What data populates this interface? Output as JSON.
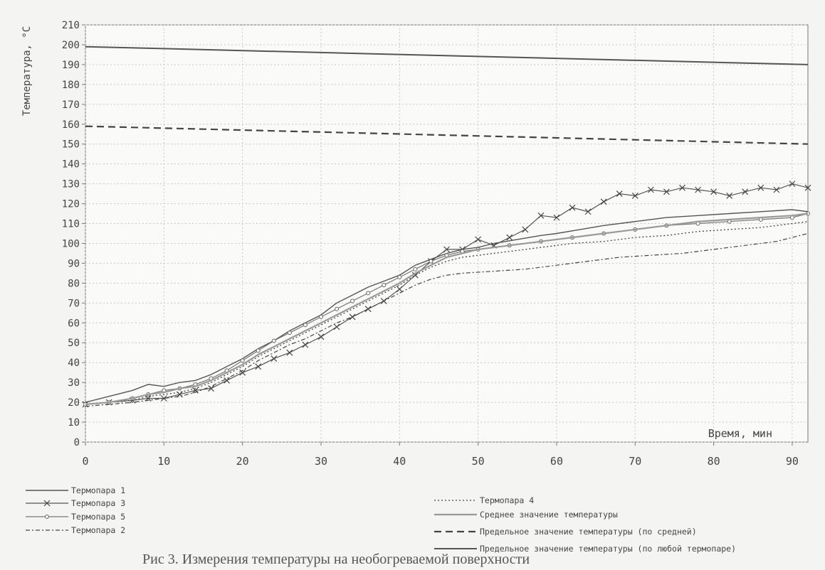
{
  "chart_data": {
    "type": "line",
    "ylabel": "Температура, °С",
    "xlabel": "Время, мин",
    "xlim": [
      0,
      92
    ],
    "ylim": [
      0,
      210
    ],
    "x_ticks": [
      0,
      10,
      20,
      30,
      40,
      50,
      60,
      70,
      80,
      90
    ],
    "y_ticks": [
      0,
      10,
      20,
      30,
      40,
      50,
      60,
      70,
      80,
      90,
      100,
      110,
      120,
      130,
      140,
      150,
      160,
      170,
      180,
      190,
      200,
      210
    ],
    "grid": true,
    "legend_position": "bottom",
    "series": [
      {
        "name": "Термопара 1",
        "style": "solid",
        "points": [
          [
            0,
            20
          ],
          [
            3,
            23
          ],
          [
            6,
            26
          ],
          [
            8,
            29
          ],
          [
            10,
            28
          ],
          [
            12,
            30
          ],
          [
            14,
            31
          ],
          [
            16,
            34
          ],
          [
            18,
            38
          ],
          [
            20,
            42
          ],
          [
            22,
            47
          ],
          [
            24,
            51
          ],
          [
            26,
            56
          ],
          [
            28,
            60
          ],
          [
            30,
            64
          ],
          [
            32,
            70
          ],
          [
            34,
            74
          ],
          [
            36,
            78
          ],
          [
            38,
            81
          ],
          [
            40,
            84
          ],
          [
            42,
            89
          ],
          [
            44,
            92
          ],
          [
            46,
            95
          ],
          [
            48,
            97
          ],
          [
            50,
            98
          ],
          [
            52,
            100
          ],
          [
            55,
            102
          ],
          [
            58,
            104
          ],
          [
            60,
            105
          ],
          [
            63,
            107
          ],
          [
            66,
            109
          ],
          [
            70,
            111
          ],
          [
            74,
            113
          ],
          [
            78,
            114
          ],
          [
            82,
            115
          ],
          [
            86,
            116
          ],
          [
            90,
            117
          ],
          [
            92,
            116
          ]
        ]
      },
      {
        "name": "Термопара 3",
        "style": "cross",
        "points": [
          [
            0,
            19
          ],
          [
            3,
            20
          ],
          [
            6,
            21
          ],
          [
            8,
            22
          ],
          [
            10,
            22
          ],
          [
            12,
            24
          ],
          [
            14,
            26
          ],
          [
            16,
            27
          ],
          [
            18,
            31
          ],
          [
            20,
            35
          ],
          [
            22,
            38
          ],
          [
            24,
            42
          ],
          [
            26,
            45
          ],
          [
            28,
            49
          ],
          [
            30,
            53
          ],
          [
            32,
            58
          ],
          [
            34,
            63
          ],
          [
            36,
            67
          ],
          [
            38,
            71
          ],
          [
            40,
            77
          ],
          [
            42,
            84
          ],
          [
            44,
            91
          ],
          [
            46,
            97
          ],
          [
            48,
            97
          ],
          [
            50,
            102
          ],
          [
            52,
            99
          ],
          [
            54,
            103
          ],
          [
            56,
            107
          ],
          [
            58,
            114
          ],
          [
            60,
            113
          ],
          [
            62,
            118
          ],
          [
            64,
            116
          ],
          [
            66,
            121
          ],
          [
            68,
            125
          ],
          [
            70,
            124
          ],
          [
            72,
            127
          ],
          [
            74,
            126
          ],
          [
            76,
            128
          ],
          [
            78,
            127
          ],
          [
            80,
            126
          ],
          [
            82,
            124
          ],
          [
            84,
            126
          ],
          [
            86,
            128
          ],
          [
            88,
            127
          ],
          [
            90,
            130
          ],
          [
            92,
            128
          ]
        ]
      },
      {
        "name": "Термопара 5",
        "style": "circle",
        "points": [
          [
            0,
            19
          ],
          [
            3,
            20
          ],
          [
            6,
            22
          ],
          [
            8,
            24
          ],
          [
            10,
            26
          ],
          [
            12,
            27
          ],
          [
            14,
            29
          ],
          [
            16,
            32
          ],
          [
            18,
            36
          ],
          [
            20,
            41
          ],
          [
            22,
            46
          ],
          [
            24,
            51
          ],
          [
            26,
            55
          ],
          [
            28,
            59
          ],
          [
            30,
            63
          ],
          [
            32,
            67
          ],
          [
            34,
            71
          ],
          [
            36,
            75
          ],
          [
            38,
            79
          ],
          [
            40,
            83
          ],
          [
            42,
            87
          ],
          [
            44,
            91
          ],
          [
            46,
            94
          ],
          [
            48,
            96
          ],
          [
            50,
            97
          ],
          [
            54,
            99
          ],
          [
            58,
            101
          ],
          [
            62,
            103
          ],
          [
            66,
            105
          ],
          [
            70,
            107
          ],
          [
            74,
            109
          ],
          [
            78,
            110
          ],
          [
            82,
            111
          ],
          [
            86,
            112
          ],
          [
            90,
            113
          ],
          [
            92,
            115
          ]
        ]
      },
      {
        "name": "Термопара 2",
        "style": "dashdot",
        "points": [
          [
            0,
            18
          ],
          [
            3,
            19
          ],
          [
            6,
            20
          ],
          [
            8,
            21
          ],
          [
            10,
            22
          ],
          [
            12,
            23
          ],
          [
            14,
            25
          ],
          [
            16,
            28
          ],
          [
            18,
            32
          ],
          [
            20,
            36
          ],
          [
            22,
            41
          ],
          [
            24,
            45
          ],
          [
            26,
            49
          ],
          [
            28,
            52
          ],
          [
            30,
            56
          ],
          [
            32,
            60
          ],
          [
            34,
            63
          ],
          [
            36,
            67
          ],
          [
            38,
            71
          ],
          [
            40,
            75
          ],
          [
            42,
            79
          ],
          [
            44,
            82
          ],
          [
            46,
            84
          ],
          [
            48,
            85
          ],
          [
            52,
            86
          ],
          [
            56,
            87
          ],
          [
            60,
            89
          ],
          [
            64,
            91
          ],
          [
            68,
            93
          ],
          [
            72,
            94
          ],
          [
            76,
            95
          ],
          [
            80,
            97
          ],
          [
            84,
            99
          ],
          [
            88,
            101
          ],
          [
            90,
            103
          ],
          [
            92,
            105
          ]
        ]
      },
      {
        "name": "Термопара 4",
        "style": "dotted",
        "points": [
          [
            0,
            19
          ],
          [
            3,
            20
          ],
          [
            6,
            21
          ],
          [
            8,
            23
          ],
          [
            10,
            24
          ],
          [
            12,
            25
          ],
          [
            14,
            27
          ],
          [
            16,
            30
          ],
          [
            18,
            34
          ],
          [
            20,
            38
          ],
          [
            22,
            43
          ],
          [
            24,
            47
          ],
          [
            26,
            51
          ],
          [
            28,
            55
          ],
          [
            30,
            59
          ],
          [
            32,
            63
          ],
          [
            34,
            67
          ],
          [
            36,
            71
          ],
          [
            38,
            75
          ],
          [
            40,
            79
          ],
          [
            42,
            84
          ],
          [
            44,
            88
          ],
          [
            46,
            91
          ],
          [
            48,
            93
          ],
          [
            50,
            94
          ],
          [
            54,
            96
          ],
          [
            58,
            98
          ],
          [
            62,
            100
          ],
          [
            66,
            101
          ],
          [
            70,
            103
          ],
          [
            74,
            104
          ],
          [
            78,
            106
          ],
          [
            82,
            107
          ],
          [
            86,
            108
          ],
          [
            90,
            110
          ],
          [
            92,
            111
          ]
        ]
      },
      {
        "name": "Среднее значение температуры",
        "style": "solid-gray",
        "points": [
          [
            0,
            19
          ],
          [
            3,
            20
          ],
          [
            6,
            22
          ],
          [
            8,
            24
          ],
          [
            10,
            25
          ],
          [
            12,
            27
          ],
          [
            14,
            28
          ],
          [
            16,
            31
          ],
          [
            18,
            35
          ],
          [
            20,
            39
          ],
          [
            22,
            44
          ],
          [
            24,
            48
          ],
          [
            26,
            52
          ],
          [
            28,
            56
          ],
          [
            30,
            60
          ],
          [
            32,
            64
          ],
          [
            34,
            68
          ],
          [
            36,
            72
          ],
          [
            38,
            76
          ],
          [
            40,
            80
          ],
          [
            42,
            85
          ],
          [
            44,
            89
          ],
          [
            46,
            93
          ],
          [
            48,
            95
          ],
          [
            50,
            97
          ],
          [
            54,
            99
          ],
          [
            58,
            101
          ],
          [
            62,
            103
          ],
          [
            66,
            105
          ],
          [
            70,
            107
          ],
          [
            74,
            109
          ],
          [
            78,
            111
          ],
          [
            82,
            112
          ],
          [
            86,
            113
          ],
          [
            90,
            114
          ],
          [
            92,
            115
          ]
        ]
      },
      {
        "name": "Предельное значение температуры (по средней)",
        "style": "dashed-bold",
        "points": [
          [
            0,
            159
          ],
          [
            92,
            150
          ]
        ]
      },
      {
        "name": "Предельное значение температуры (по любой термопаре)",
        "style": "solid-bold",
        "points": [
          [
            0,
            199
          ],
          [
            92,
            190
          ]
        ]
      }
    ]
  },
  "caption": "Рис 3. Измерения температуры на необогреваемой поверхности"
}
